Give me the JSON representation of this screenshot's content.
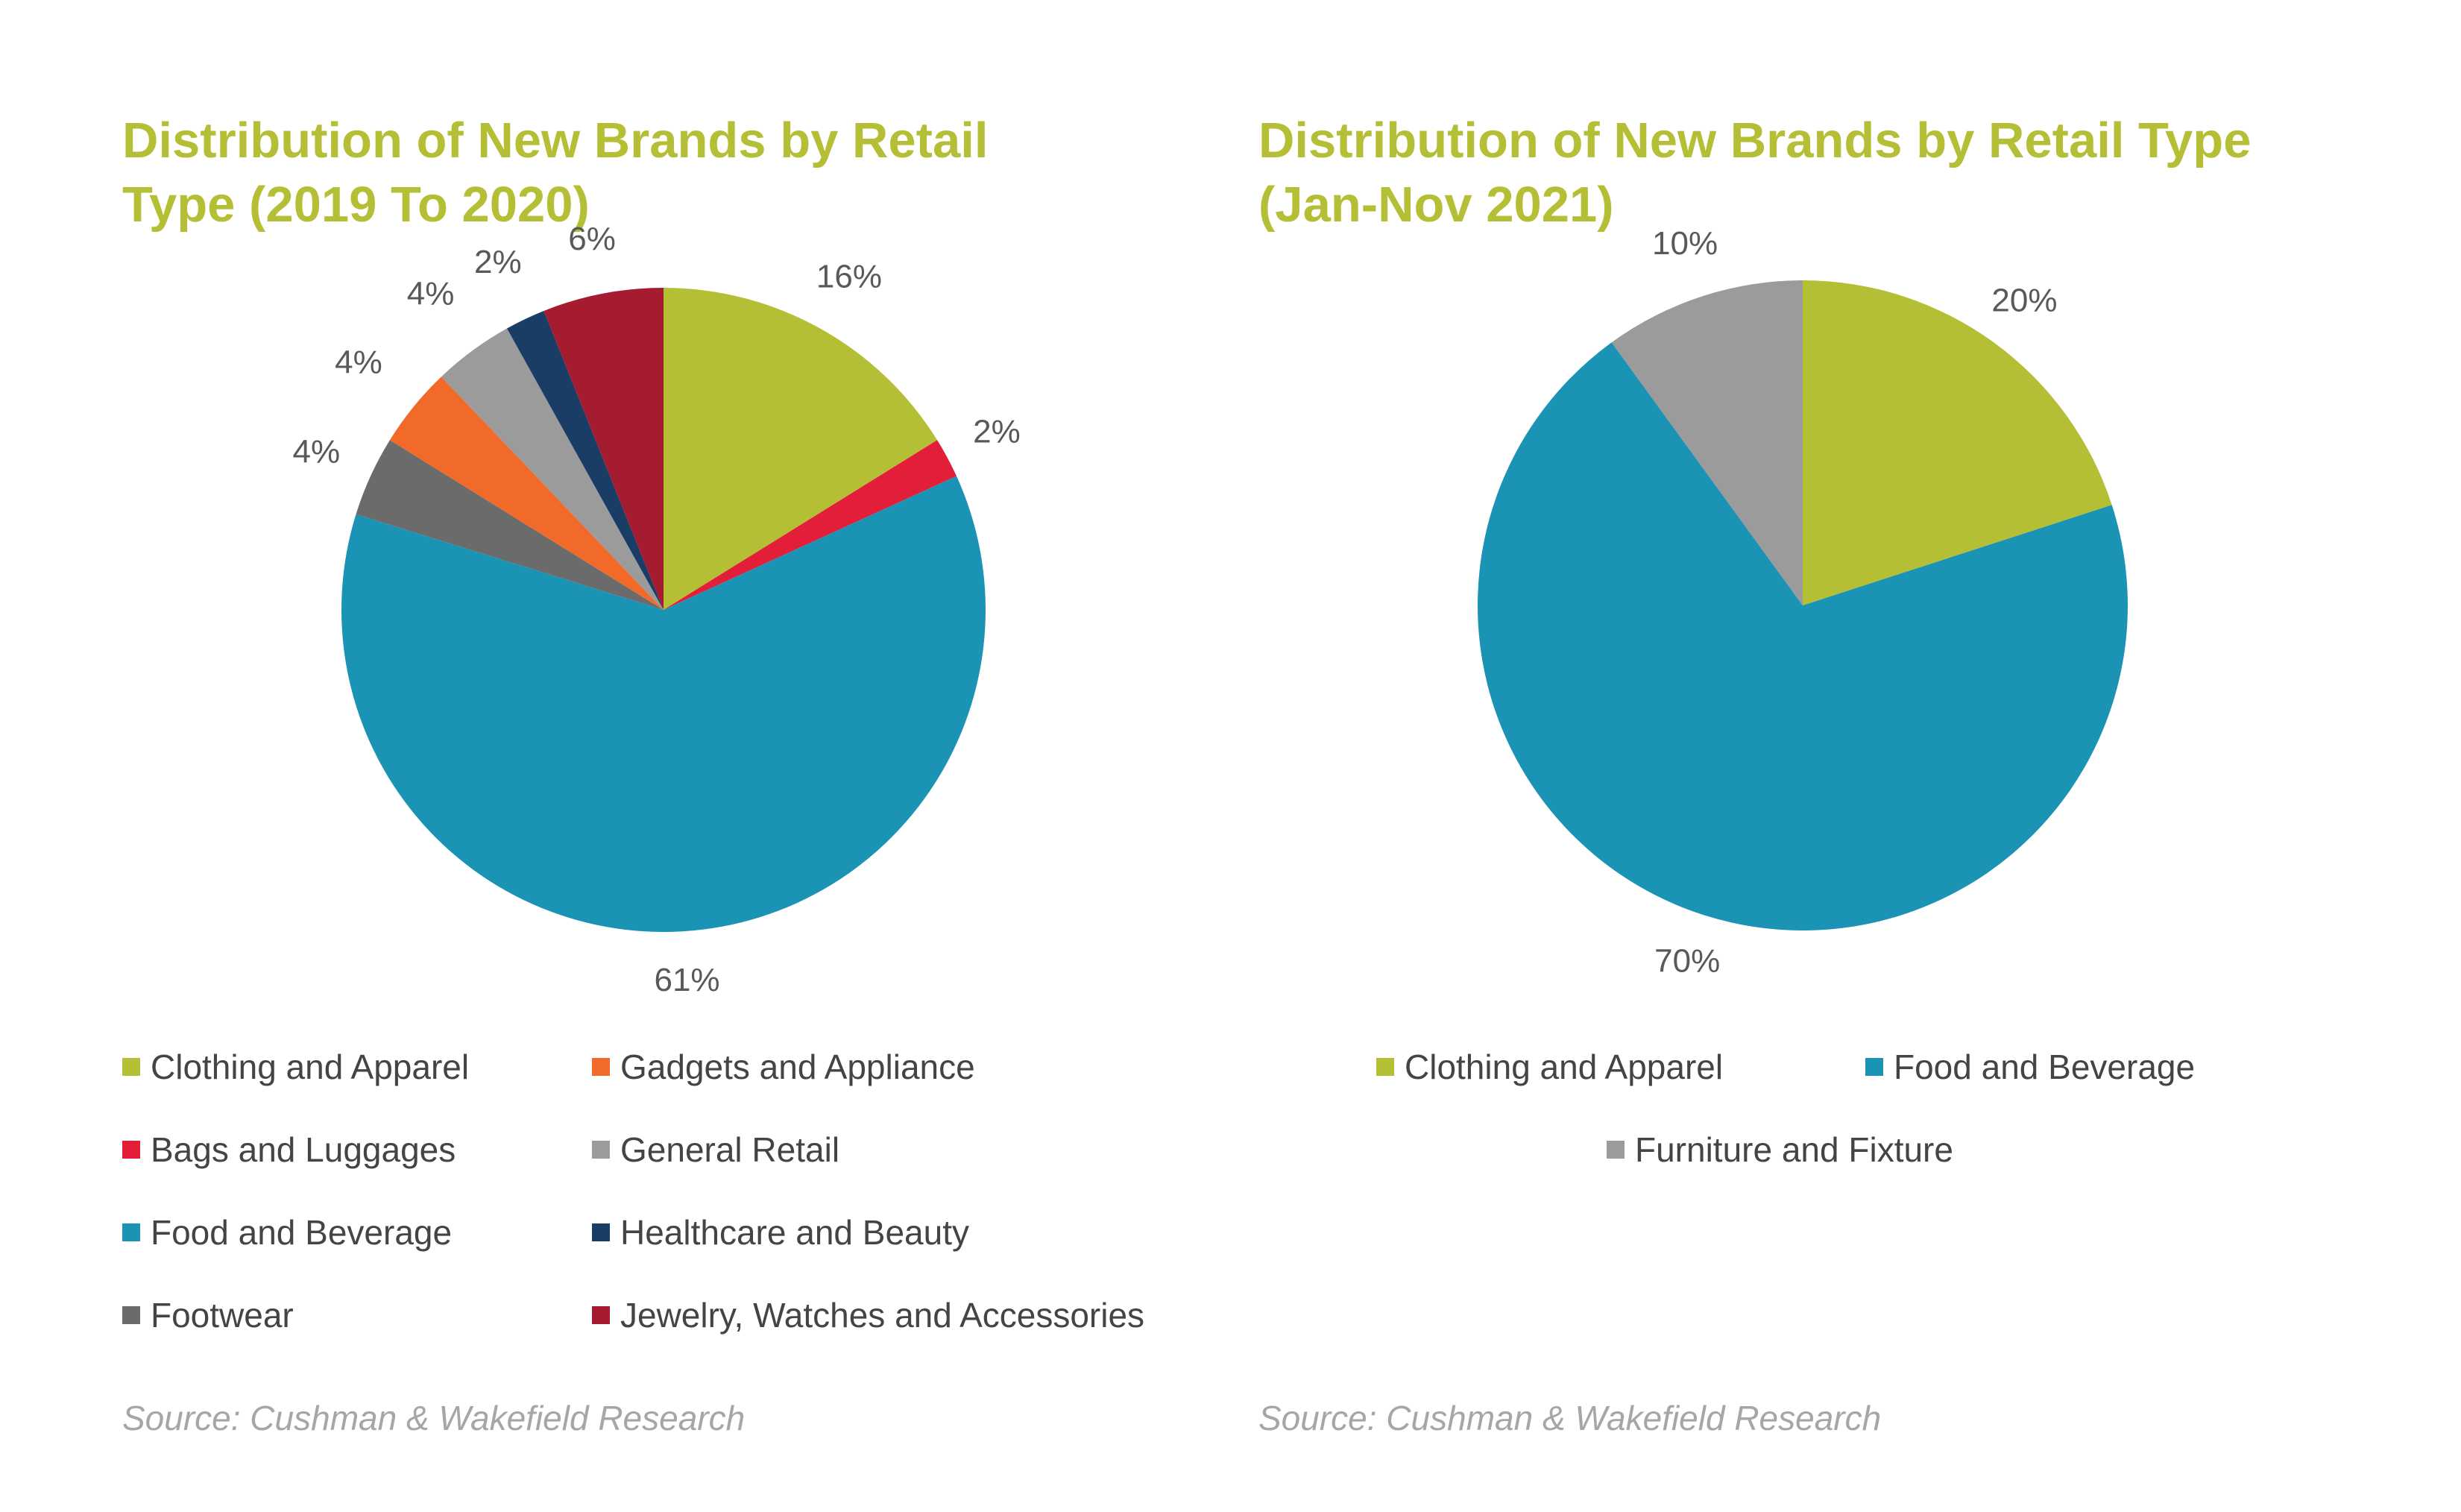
{
  "chart_data": [
    {
      "type": "pie",
      "title": "Distribution of New Brands by Retail Type (2019 To 2020)",
      "unit": "%",
      "slices": [
        {
          "name": "Clothing and Apparel",
          "value": 16,
          "label": "16%",
          "color": "#b5bf35"
        },
        {
          "name": "Bags and Luggages",
          "value": 2,
          "label": "2%",
          "color": "#e31e38"
        },
        {
          "name": "Food and Beverage",
          "value": 61,
          "label": "61%",
          "color": "#1b93b4"
        },
        {
          "name": "Footwear",
          "value": 4,
          "label": "4%",
          "color": "#6b6b6b"
        },
        {
          "name": "Gadgets and Appliance",
          "value": 4,
          "label": "4%",
          "color": "#f26a2a"
        },
        {
          "name": "General Retail",
          "value": 4,
          "label": "4%",
          "color": "#9b9b9b"
        },
        {
          "name": "Healthcare and Beauty",
          "value": 2,
          "label": "2%",
          "color": "#1a3d66"
        },
        {
          "name": "Jewelry, Watches and Accessories",
          "value": 6,
          "label": "6%",
          "color": "#a51c30"
        }
      ],
      "legend": [
        "Clothing and Apparel",
        "Gadgets and Appliance",
        "Bags and Luggages",
        "General Retail",
        "Food and Beverage",
        "Healthcare and Beauty",
        "Footwear",
        "Jewelry, Watches and Accessories"
      ],
      "legend_position": "bottom",
      "source": "Source: Cushman & Wakefield Research"
    },
    {
      "type": "pie",
      "title": "Distribution of New Brands by Retail Type (Jan-Nov 2021)",
      "unit": "%",
      "slices": [
        {
          "name": "Clothing and Apparel",
          "value": 20,
          "label": "20%",
          "color": "#b5bf35"
        },
        {
          "name": "Food and Beverage",
          "value": 70,
          "label": "70%",
          "color": "#1b93b4"
        },
        {
          "name": "Furniture and Fixture",
          "value": 10,
          "label": "10%",
          "color": "#9b9b9b"
        }
      ],
      "legend": [
        "Clothing and Apparel",
        "Food and Beverage",
        "Furniture and Fixture"
      ],
      "legend_position": "bottom",
      "source": "Source: Cushman & Wakefield Research"
    }
  ],
  "titles": {
    "left": "Distribution of New Brands by Retail\nType (2019 To 2020)",
    "right": "Distribution of New Brands by Retail Type\n(Jan-Nov 2021)"
  }
}
